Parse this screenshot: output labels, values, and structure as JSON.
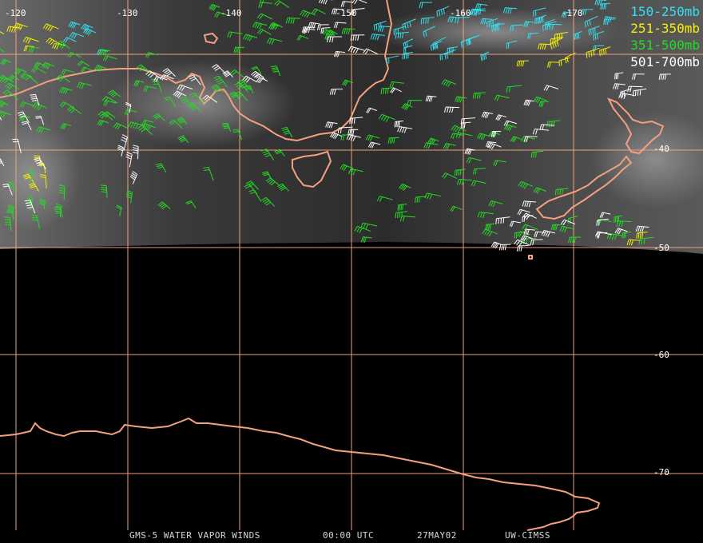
{
  "legend": [
    {
      "label": "150-250mb",
      "color": "#33e0f0"
    },
    {
      "label": "251-350mb",
      "color": "#f5f000"
    },
    {
      "label": "351-500mb",
      "color": "#22dd22"
    },
    {
      "label": "501-700mb",
      "color": "#ffffff"
    }
  ],
  "longitude_labels": [
    "-120",
    "-130",
    "-140",
    "-150",
    "-160",
    "-170"
  ],
  "latitude_labels": [
    "-40",
    "-50",
    "-60",
    "-70"
  ],
  "footer": {
    "product": "GMS-5 WATER VAPOR WINDS",
    "time": "00:00 UTC",
    "date": "27MAY02",
    "source": "UW-CIMSS"
  },
  "colors": {
    "grid": "#f0a080",
    "coast": "#f4a080",
    "background": "#000000"
  }
}
